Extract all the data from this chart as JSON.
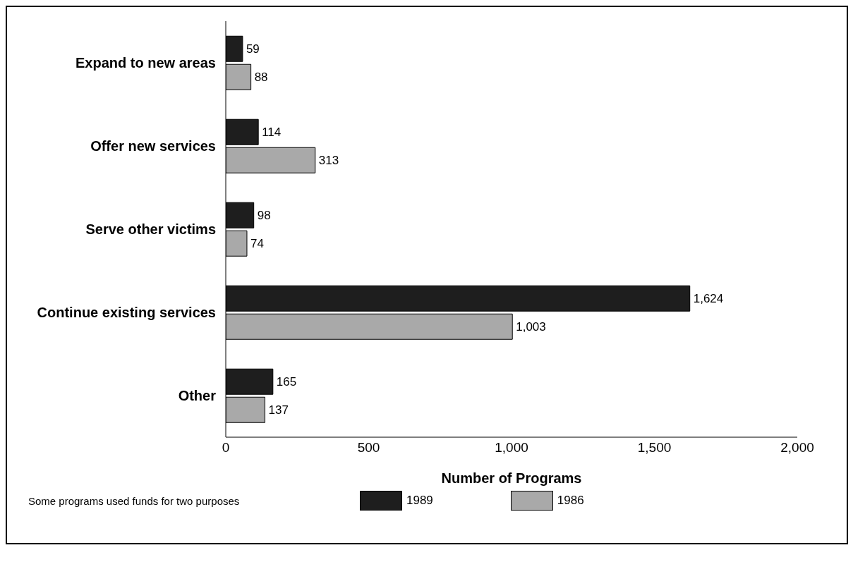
{
  "chart_data": {
    "type": "bar",
    "orientation": "horizontal",
    "xlabel": "Number of Programs",
    "categories": [
      "Expand to new areas",
      "Offer new services",
      "Serve other victims",
      "Continue existing services",
      "Other"
    ],
    "series": [
      {
        "name": "1989",
        "color": "#1e1e1e",
        "values": [
          59,
          114,
          98,
          1624,
          165
        ],
        "value_labels": [
          "59",
          "114",
          "98",
          "1,624",
          "165"
        ]
      },
      {
        "name": "1986",
        "color": "#a9a9a9",
        "values": [
          88,
          313,
          74,
          1003,
          137
        ],
        "value_labels": [
          "88",
          "313",
          "74",
          "1,003",
          "137"
        ]
      }
    ],
    "xlim": [
      0,
      2000
    ],
    "xticks": [
      0,
      500,
      {
        "value": 1000,
        "label": "1,000"
      },
      {
        "value": 1500,
        "label": "1,500"
      },
      {
        "value": 2000,
        "label": "2,000"
      }
    ],
    "grid": false,
    "legend": "bottom",
    "annotations": [
      "Some programs used funds for two purposes"
    ]
  }
}
